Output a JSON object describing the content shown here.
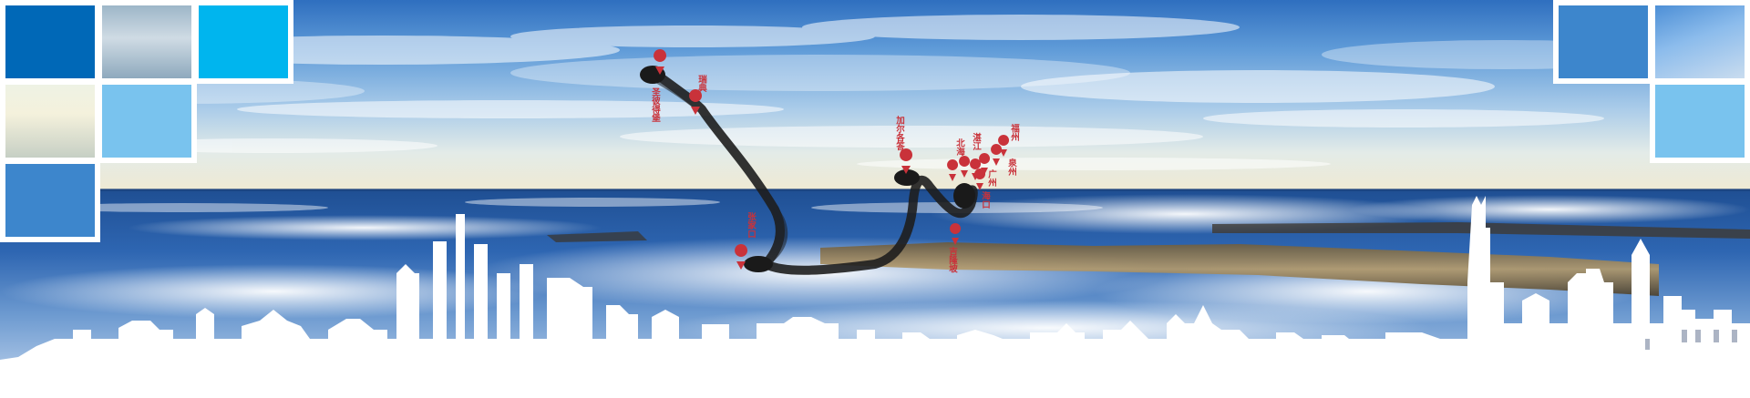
{
  "colors": {
    "tile_dark_blue": "#0068b7",
    "tile_cyan": "#00b5ee",
    "tile_light_blue": "#79c3ee",
    "tile_mid_blue": "#3d86cc",
    "pin_red": "#c9323a",
    "route_ink": "#222222",
    "skyline": "#ffffff"
  },
  "labels": {
    "west_top": "瑞典",
    "west_left": "圣彼得堡",
    "central_south": "张家口",
    "east_peak": "加尔各答",
    "east_a": "北海",
    "east_b": "湛江",
    "east_c": "广州",
    "east_d": "泉州",
    "east_e": "福州",
    "east_f": "海口",
    "east_g": "吉隆坡"
  }
}
